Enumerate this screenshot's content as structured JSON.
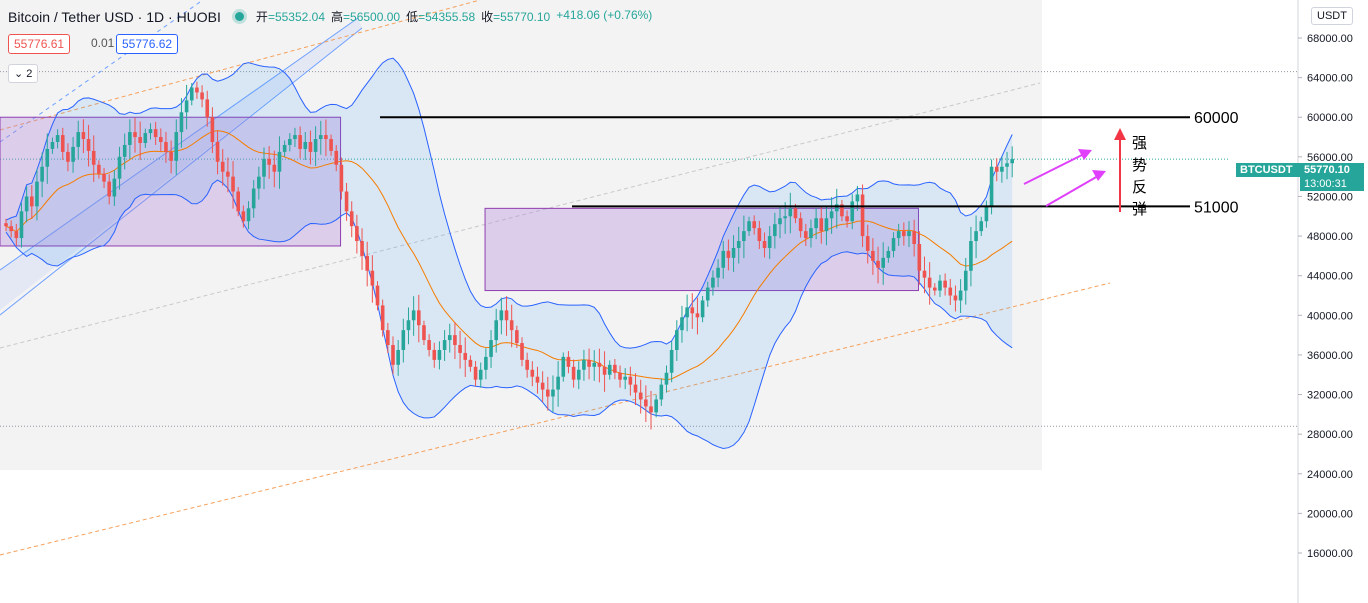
{
  "header": {
    "symbol": "Bitcoin / Tether USD · 1D · HUOBI",
    "open_label": "开",
    "open": "=55352.04",
    "high_label": "高",
    "high": "=56500.00",
    "low_label": "低",
    "low": "=54355.58",
    "close_label": "收",
    "close": "=55770.10",
    "change": "+418.06 (+0.76%)"
  },
  "trade": {
    "sell": "55776.61",
    "spread": "0.01",
    "buy": "55776.62"
  },
  "indicator_toggle": "2",
  "currency_button": "USDT",
  "price_tag": {
    "symbol": "BTCUSDT",
    "price": "55770.10",
    "countdown": "13:00:31"
  },
  "annotations": {
    "level_high": "60000",
    "level_low": "51000",
    "rebound_text": [
      "强",
      "势",
      "反",
      "弹"
    ]
  },
  "colors": {
    "up": "#26a69a",
    "down": "#ef5350",
    "band": "#2962ff",
    "ma": "#f57c00",
    "zone": "#b388d6",
    "arrow_pink": "#e040fb",
    "arrow_red": "#f23645"
  },
  "chart_data": {
    "type": "candlestick",
    "y_ticks": [
      68000,
      64000,
      60000,
      56000,
      52000,
      48000,
      44000,
      40000,
      36000,
      32000,
      28000,
      24000,
      20000,
      16000
    ],
    "y_tick_labels": [
      "68000.00",
      "64000.00",
      "60000.00",
      "56000.00",
      "52000.00",
      "48000.00",
      "44000.00",
      "40000.00",
      "36000.00",
      "32000.00",
      "28000.00",
      "24000.00",
      "20000.00",
      "16000.00"
    ],
    "ylim": [
      15000,
      70500
    ],
    "horizontal_levels": [
      60000,
      51000
    ],
    "zones": [
      {
        "from_index": 0,
        "to_index": 66,
        "low": 47000,
        "high": 60000
      },
      {
        "from_index": 94,
        "to_index": 178,
        "low": 42500,
        "high": 50800
      }
    ],
    "closes": [
      49000,
      48500,
      47800,
      50500,
      52000,
      51000,
      53500,
      55000,
      56800,
      57500,
      58200,
      56500,
      55500,
      57000,
      58500,
      57800,
      56600,
      55200,
      54300,
      53500,
      52000,
      53800,
      56000,
      57200,
      58500,
      58000,
      57400,
      58400,
      58800,
      58000,
      57500,
      56500,
      55600,
      58500,
      60500,
      61700,
      63000,
      62500,
      61800,
      60000,
      57500,
      55500,
      54500,
      54000,
      52500,
      50500,
      49500,
      50800,
      52800,
      54000,
      55800,
      55200,
      54500,
      56500,
      57200,
      57800,
      58200,
      56800,
      57500,
      56500,
      57800,
      58200,
      57800,
      56600,
      55200,
      52500,
      50500,
      49000,
      47500,
      46000,
      44500,
      43000,
      41000,
      38500,
      37000,
      35000,
      36500,
      38500,
      39500,
      40500,
      39000,
      37500,
      36500,
      35500,
      36500,
      37500,
      38000,
      37000,
      36200,
      35500,
      34800,
      33500,
      34500,
      35800,
      37500,
      39500,
      40500,
      39500,
      38500,
      37200,
      35500,
      34500,
      33800,
      33200,
      32500,
      31800,
      32500,
      33800,
      35800,
      34800,
      33500,
      34500,
      35500,
      34800,
      35200,
      34800,
      34000,
      35000,
      34200,
      33500,
      33800,
      33000,
      32200,
      31500,
      30800,
      30200,
      31500,
      33000,
      34200,
      36500,
      38500,
      39800,
      40800,
      40200,
      39800,
      41500,
      42800,
      43800,
      44800,
      46500,
      45800,
      46800,
      47500,
      48500,
      49500,
      48800,
      47500,
      46800,
      48000,
      49200,
      49800,
      50000,
      50800,
      49800,
      48500,
      47800,
      48800,
      49800,
      48500,
      49800,
      50500,
      51200,
      50000,
      49500,
      51500,
      52200,
      48000,
      46500,
      45500,
      44800,
      45800,
      46500,
      47800,
      48500,
      48000,
      48500,
      47200,
      44500,
      43800,
      42800,
      42500,
      43500,
      42800,
      42000,
      41500,
      42500,
      44500,
      47500,
      48500,
      49500,
      51000,
      55000,
      54500,
      55000,
      55352,
      55770
    ],
    "bollinger": {
      "period": 20,
      "stddev": 2
    },
    "ma": {
      "period": 20
    }
  }
}
